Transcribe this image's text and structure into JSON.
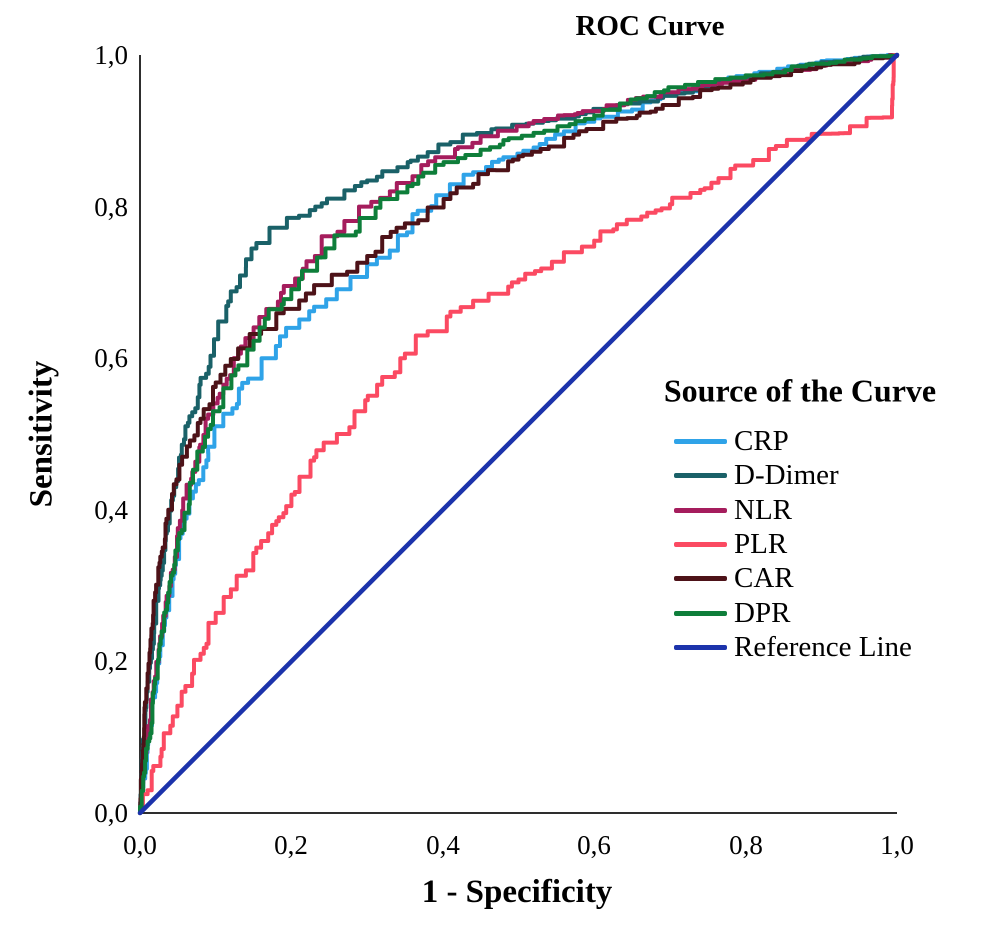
{
  "chart_data": {
    "type": "line",
    "title": "ROC Curve",
    "xlabel": "1 - Specificity",
    "ylabel": "Sensitivity",
    "xlim": [
      0,
      1
    ],
    "ylim": [
      0,
      1
    ],
    "x_ticks": [
      "0,0",
      "0,2",
      "0,4",
      "0,6",
      "0,8",
      "1,0"
    ],
    "y_ticks": [
      "1,0",
      "0,8",
      "0,6",
      "0,4",
      "0,2",
      "0,0"
    ],
    "decimal_separator": ",",
    "grid": false,
    "legend_title": "Source of the Curve",
    "legend_position": "right-middle",
    "axis_color": "#2E2E2E",
    "background_color": "#FFFFFF",
    "series": [
      {
        "name": "CRP",
        "color": "#2FA3E8",
        "style": "staircase",
        "points": [
          [
            0,
            0
          ],
          [
            0.01,
            0.08
          ],
          [
            0.02,
            0.16
          ],
          [
            0.032,
            0.24
          ],
          [
            0.05,
            0.335
          ],
          [
            0.068,
            0.415
          ],
          [
            0.09,
            0.475
          ],
          [
            0.11,
            0.515
          ],
          [
            0.135,
            0.56
          ],
          [
            0.165,
            0.6
          ],
          [
            0.2,
            0.64
          ],
          [
            0.23,
            0.662
          ],
          [
            0.26,
            0.685
          ],
          [
            0.3,
            0.713
          ],
          [
            0.33,
            0.742
          ],
          [
            0.36,
            0.775
          ],
          [
            0.4,
            0.815
          ],
          [
            0.44,
            0.842
          ],
          [
            0.48,
            0.862
          ],
          [
            0.52,
            0.878
          ],
          [
            0.56,
            0.895
          ],
          [
            0.6,
            0.912
          ],
          [
            0.65,
            0.928
          ],
          [
            0.7,
            0.948
          ],
          [
            0.75,
            0.962
          ],
          [
            0.8,
            0.972
          ],
          [
            0.85,
            0.982
          ],
          [
            0.9,
            0.99
          ],
          [
            0.95,
            0.996
          ],
          [
            1,
            1
          ]
        ]
      },
      {
        "name": "D-Dimer",
        "color": "#1A6168",
        "style": "staircase",
        "points": [
          [
            0,
            0
          ],
          [
            0.004,
            0.09
          ],
          [
            0.01,
            0.16
          ],
          [
            0.02,
            0.25
          ],
          [
            0.03,
            0.33
          ],
          [
            0.046,
            0.43
          ],
          [
            0.06,
            0.5
          ],
          [
            0.08,
            0.565
          ],
          [
            0.1,
            0.625
          ],
          [
            0.12,
            0.675
          ],
          [
            0.14,
            0.72
          ],
          [
            0.16,
            0.752
          ],
          [
            0.18,
            0.772
          ],
          [
            0.21,
            0.788
          ],
          [
            0.24,
            0.8
          ],
          [
            0.27,
            0.816
          ],
          [
            0.3,
            0.832
          ],
          [
            0.34,
            0.852
          ],
          [
            0.38,
            0.868
          ],
          [
            0.41,
            0.882
          ],
          [
            0.44,
            0.895
          ],
          [
            0.47,
            0.902
          ],
          [
            0.5,
            0.908
          ],
          [
            0.54,
            0.913
          ],
          [
            0.58,
            0.922
          ],
          [
            0.62,
            0.93
          ],
          [
            0.66,
            0.937
          ],
          [
            0.7,
            0.946
          ],
          [
            0.74,
            0.956
          ],
          [
            0.78,
            0.966
          ],
          [
            0.82,
            0.975
          ],
          [
            0.86,
            0.982
          ],
          [
            0.9,
            0.99
          ],
          [
            0.95,
            0.996
          ],
          [
            1,
            1
          ]
        ]
      },
      {
        "name": "NLR",
        "color": "#A51D5D",
        "style": "staircase",
        "points": [
          [
            0,
            0
          ],
          [
            0.01,
            0.1
          ],
          [
            0.02,
            0.18
          ],
          [
            0.032,
            0.26
          ],
          [
            0.05,
            0.365
          ],
          [
            0.07,
            0.45
          ],
          [
            0.09,
            0.52
          ],
          [
            0.11,
            0.565
          ],
          [
            0.13,
            0.6
          ],
          [
            0.15,
            0.635
          ],
          [
            0.17,
            0.665
          ],
          [
            0.19,
            0.692
          ],
          [
            0.215,
            0.718
          ],
          [
            0.24,
            0.748
          ],
          [
            0.27,
            0.775
          ],
          [
            0.3,
            0.8
          ],
          [
            0.33,
            0.82
          ],
          [
            0.36,
            0.84
          ],
          [
            0.39,
            0.86
          ],
          [
            0.42,
            0.876
          ],
          [
            0.45,
            0.89
          ],
          [
            0.48,
            0.9
          ],
          [
            0.52,
            0.91
          ],
          [
            0.56,
            0.92
          ],
          [
            0.6,
            0.926
          ],
          [
            0.64,
            0.935
          ],
          [
            0.68,
            0.945
          ],
          [
            0.72,
            0.955
          ],
          [
            0.76,
            0.961
          ],
          [
            0.8,
            0.966
          ],
          [
            0.85,
            0.976
          ],
          [
            0.9,
            0.986
          ],
          [
            0.95,
            0.992
          ],
          [
            1,
            1
          ]
        ]
      },
      {
        "name": "PLR",
        "color": "#FB4A62",
        "style": "staircase",
        "points": [
          [
            0,
            0
          ],
          [
            0.01,
            0.03
          ],
          [
            0.022,
            0.062
          ],
          [
            0.04,
            0.11
          ],
          [
            0.06,
            0.16
          ],
          [
            0.08,
            0.21
          ],
          [
            0.1,
            0.258
          ],
          [
            0.12,
            0.295
          ],
          [
            0.14,
            0.32
          ],
          [
            0.16,
            0.35
          ],
          [
            0.18,
            0.385
          ],
          [
            0.2,
            0.42
          ],
          [
            0.23,
            0.465
          ],
          [
            0.26,
            0.5
          ],
          [
            0.29,
            0.53
          ],
          [
            0.32,
            0.565
          ],
          [
            0.35,
            0.6
          ],
          [
            0.38,
            0.63
          ],
          [
            0.41,
            0.655
          ],
          [
            0.44,
            0.67
          ],
          [
            0.47,
            0.685
          ],
          [
            0.5,
            0.7
          ],
          [
            0.53,
            0.715
          ],
          [
            0.56,
            0.732
          ],
          [
            0.6,
            0.755
          ],
          [
            0.63,
            0.77
          ],
          [
            0.67,
            0.792
          ],
          [
            0.7,
            0.803
          ],
          [
            0.74,
            0.822
          ],
          [
            0.78,
            0.846
          ],
          [
            0.81,
            0.856
          ],
          [
            0.84,
            0.876
          ],
          [
            0.87,
            0.888
          ],
          [
            0.9,
            0.896
          ],
          [
            0.93,
            0.897
          ],
          [
            0.95,
            0.906
          ],
          [
            0.965,
            0.917
          ],
          [
            0.993,
            0.918
          ],
          [
            0.996,
            0.997
          ],
          [
            1,
            1
          ]
        ]
      },
      {
        "name": "CAR",
        "color": "#4D1218",
        "style": "staircase",
        "points": [
          [
            0,
            0
          ],
          [
            0.003,
            0.07
          ],
          [
            0.006,
            0.13
          ],
          [
            0.01,
            0.18
          ],
          [
            0.015,
            0.235
          ],
          [
            0.02,
            0.28
          ],
          [
            0.03,
            0.345
          ],
          [
            0.04,
            0.4
          ],
          [
            0.05,
            0.44
          ],
          [
            0.062,
            0.47
          ],
          [
            0.08,
            0.52
          ],
          [
            0.1,
            0.562
          ],
          [
            0.12,
            0.59
          ],
          [
            0.14,
            0.613
          ],
          [
            0.16,
            0.632
          ],
          [
            0.18,
            0.652
          ],
          [
            0.2,
            0.665
          ],
          [
            0.23,
            0.69
          ],
          [
            0.26,
            0.71
          ],
          [
            0.29,
            0.726
          ],
          [
            0.32,
            0.748
          ],
          [
            0.35,
            0.772
          ],
          [
            0.38,
            0.79
          ],
          [
            0.41,
            0.81
          ],
          [
            0.44,
            0.83
          ],
          [
            0.47,
            0.848
          ],
          [
            0.5,
            0.862
          ],
          [
            0.54,
            0.876
          ],
          [
            0.58,
            0.895
          ],
          [
            0.62,
            0.912
          ],
          [
            0.66,
            0.924
          ],
          [
            0.7,
            0.934
          ],
          [
            0.74,
            0.95
          ],
          [
            0.78,
            0.96
          ],
          [
            0.82,
            0.97
          ],
          [
            0.86,
            0.976
          ],
          [
            0.9,
            0.985
          ],
          [
            0.95,
            0.992
          ],
          [
            1,
            1
          ]
        ]
      },
      {
        "name": "DPR",
        "color": "#0E7E3A",
        "style": "staircase",
        "points": [
          [
            0,
            0
          ],
          [
            0.01,
            0.09
          ],
          [
            0.02,
            0.17
          ],
          [
            0.032,
            0.25
          ],
          [
            0.05,
            0.355
          ],
          [
            0.07,
            0.44
          ],
          [
            0.09,
            0.5
          ],
          [
            0.11,
            0.545
          ],
          [
            0.13,
            0.585
          ],
          [
            0.15,
            0.623
          ],
          [
            0.17,
            0.652
          ],
          [
            0.19,
            0.678
          ],
          [
            0.21,
            0.7
          ],
          [
            0.24,
            0.733
          ],
          [
            0.27,
            0.762
          ],
          [
            0.3,
            0.785
          ],
          [
            0.33,
            0.81
          ],
          [
            0.36,
            0.83
          ],
          [
            0.39,
            0.85
          ],
          [
            0.42,
            0.864
          ],
          [
            0.45,
            0.875
          ],
          [
            0.48,
            0.886
          ],
          [
            0.52,
            0.896
          ],
          [
            0.56,
            0.906
          ],
          [
            0.6,
            0.92
          ],
          [
            0.64,
            0.936
          ],
          [
            0.68,
            0.951
          ],
          [
            0.72,
            0.96
          ],
          [
            0.76,
            0.966
          ],
          [
            0.8,
            0.971
          ],
          [
            0.84,
            0.977
          ],
          [
            0.88,
            0.986
          ],
          [
            0.92,
            0.991
          ],
          [
            0.96,
            0.996
          ],
          [
            1,
            1
          ]
        ]
      },
      {
        "name": "Reference Line",
        "color": "#1C33AB",
        "style": "line",
        "points": [
          [
            0,
            0
          ],
          [
            1,
            1
          ]
        ]
      }
    ]
  }
}
